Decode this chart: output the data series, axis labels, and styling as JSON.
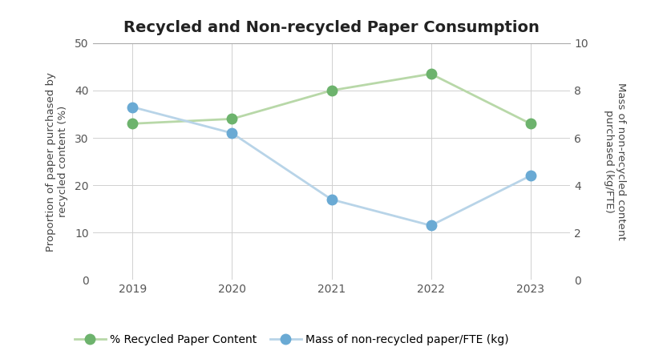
{
  "title": "Recycled and Non-recycled Paper Consumption",
  "years": [
    2019,
    2020,
    2021,
    2022,
    2023
  ],
  "recycled_pct": [
    33,
    34,
    40,
    43.5,
    33
  ],
  "nonrecycled_mass": [
    7.3,
    6.2,
    3.4,
    2.3,
    4.4
  ],
  "left_ylabel_line1": "Proportion of paper purchased by",
  "left_ylabel_line2": "recycled content (%)",
  "right_ylabel_line1": "Mass of non-recycled content",
  "right_ylabel_line2": "purchased (kg/FTE)",
  "left_ylim": [
    0,
    50
  ],
  "right_ylim": [
    0,
    10
  ],
  "left_yticks": [
    0,
    10,
    20,
    30,
    40,
    50
  ],
  "right_yticks": [
    0,
    2,
    4,
    6,
    8,
    10
  ],
  "green_line_color": "#b8d8a8",
  "green_marker_color": "#6db36d",
  "blue_line_color": "#b8d4e8",
  "blue_marker_color": "#6aaad4",
  "legend_label_green": "% Recycled Paper Content",
  "legend_label_blue": "Mass of non-recycled paper/FTE (kg)",
  "bg_color": "#ffffff",
  "grid_color": "#d0d0d0",
  "title_fontsize": 14,
  "label_fontsize": 9.5,
  "tick_fontsize": 10,
  "legend_fontsize": 10
}
